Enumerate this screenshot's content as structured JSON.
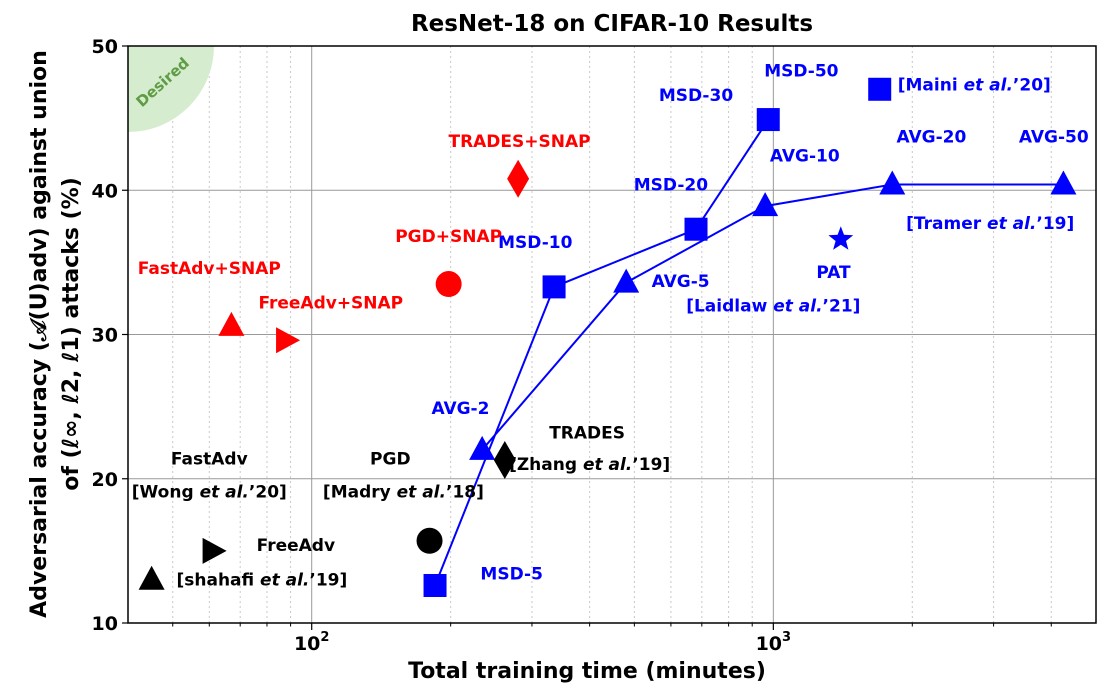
{
  "chart_data": {
    "type": "scatter",
    "title": "ResNet-18 on CIFAR-10 Results",
    "xlabel": "Total training time (minutes)",
    "ylabel_line1": "Adversarial accuracy (𝒜(U)adv) against union",
    "ylabel_line2": "of (ℓ∞, ℓ2, ℓ1) attacks (%)",
    "xscale": "log",
    "xlim": [
      40,
      5000
    ],
    "ylim": [
      10,
      50
    ],
    "grid": true,
    "x_tick_labels": [
      {
        "value": 100,
        "base": "10",
        "exp": "2"
      },
      {
        "value": 1000,
        "base": "10",
        "exp": "3"
      }
    ],
    "y_ticks": [
      10,
      20,
      30,
      40,
      50
    ],
    "desired_label": "Desired",
    "colors": {
      "blue": "#0000ff",
      "red": "#ff0000",
      "black": "#000000",
      "desired_fill": "#d6ecce",
      "desired_text": "#5e9c45"
    },
    "series_lines": [
      {
        "name": "MSD",
        "x": [
          185,
          335,
          680,
          975
        ],
        "y": [
          12.6,
          33.3,
          37.3,
          44.9
        ]
      },
      {
        "name": "AVG",
        "x": [
          234,
          480,
          960,
          1810,
          4250
        ],
        "y": [
          22.0,
          33.6,
          38.9,
          40.4,
          40.4
        ]
      }
    ],
    "points": [
      {
        "label": "MSD-5",
        "x": 185,
        "y": 12.6,
        "marker": "square",
        "color": "blue"
      },
      {
        "label": "MSD-10",
        "x": 335,
        "y": 33.3,
        "marker": "square",
        "color": "blue"
      },
      {
        "label": "MSD-20",
        "x": 680,
        "y": 37.3,
        "marker": "square",
        "color": "blue"
      },
      {
        "label": "MSD-30",
        "x": 975,
        "y": 44.9,
        "marker": "square",
        "color": "blue"
      },
      {
        "label": "MSD-50",
        "x": 1700,
        "y": 47.0,
        "marker": "square",
        "color": "blue"
      },
      {
        "label": "AVG-2",
        "x": 234,
        "y": 22.0,
        "marker": "triangle",
        "color": "blue"
      },
      {
        "label": "AVG-5",
        "x": 480,
        "y": 33.6,
        "marker": "triangle",
        "color": "blue"
      },
      {
        "label": "AVG-10",
        "x": 960,
        "y": 38.9,
        "marker": "triangle",
        "color": "blue"
      },
      {
        "label": "AVG-20",
        "x": 1810,
        "y": 40.4,
        "marker": "triangle",
        "color": "blue"
      },
      {
        "label": "AVG-50",
        "x": 4250,
        "y": 40.4,
        "marker": "triangle",
        "color": "blue"
      },
      {
        "label": "PAT",
        "x": 1400,
        "y": 36.6,
        "marker": "star",
        "color": "blue"
      },
      {
        "label": "TRADES+SNAP",
        "x": 280,
        "y": 40.8,
        "marker": "diamond",
        "color": "red"
      },
      {
        "label": "PGD+SNAP",
        "x": 198,
        "y": 33.5,
        "marker": "circle",
        "color": "red"
      },
      {
        "label": "FastAdv+SNAP",
        "x": 67,
        "y": 30.6,
        "marker": "triangle",
        "color": "red"
      },
      {
        "label": "FreeAdv+SNAP",
        "x": 88,
        "y": 29.6,
        "marker": "triangle-right",
        "color": "red"
      },
      {
        "label": "TRADES",
        "x": 262,
        "y": 21.3,
        "marker": "diamond",
        "color": "black"
      },
      {
        "label": "PGD",
        "x": 180,
        "y": 15.7,
        "marker": "circle",
        "color": "black"
      },
      {
        "label": "FastAdv",
        "x": 45,
        "y": 13.0,
        "marker": "triangle",
        "color": "black"
      },
      {
        "label": "FreeAdv",
        "x": 61,
        "y": 15.0,
        "marker": "triangle-right",
        "color": "black"
      }
    ],
    "annotations": [
      {
        "id": "msd-5",
        "color": "blue",
        "x": 232,
        "y": 13.0,
        "anchor": "start",
        "parts": [
          {
            "t": "MSD-5"
          }
        ]
      },
      {
        "id": "msd-10",
        "color": "blue",
        "x": 305,
        "y": 36.0,
        "anchor": "middle",
        "parts": [
          {
            "t": "MSD-10"
          }
        ]
      },
      {
        "id": "msd-20",
        "color": "blue",
        "x": 600,
        "y": 40.0,
        "anchor": "middle",
        "parts": [
          {
            "t": "MSD-20"
          }
        ]
      },
      {
        "id": "msd-30",
        "color": "blue",
        "x": 680,
        "y": 46.2,
        "anchor": "middle",
        "parts": [
          {
            "t": "MSD-30"
          }
        ]
      },
      {
        "id": "msd-50",
        "color": "blue",
        "x": 1150,
        "y": 47.9,
        "anchor": "middle",
        "parts": [
          {
            "t": "MSD-50"
          }
        ]
      },
      {
        "id": "maini",
        "color": "blue",
        "x": 1860,
        "y": 46.9,
        "anchor": "start",
        "parts": [
          {
            "t": "[Maini "
          },
          {
            "t": "et al.",
            "i": true
          },
          {
            "t": "’20]"
          }
        ]
      },
      {
        "id": "avg-2",
        "color": "blue",
        "x": 210,
        "y": 24.5,
        "anchor": "middle",
        "parts": [
          {
            "t": "AVG-2"
          }
        ]
      },
      {
        "id": "avg-5",
        "color": "blue",
        "x": 545,
        "y": 33.3,
        "anchor": "start",
        "parts": [
          {
            "t": "AVG-5"
          }
        ]
      },
      {
        "id": "avg-10",
        "color": "blue",
        "x": 1170,
        "y": 42.0,
        "anchor": "middle",
        "parts": [
          {
            "t": "AVG-10"
          }
        ]
      },
      {
        "id": "avg-20",
        "color": "blue",
        "x": 2200,
        "y": 43.3,
        "anchor": "middle",
        "parts": [
          {
            "t": "AVG-20"
          }
        ]
      },
      {
        "id": "avg-50",
        "color": "blue",
        "x": 4050,
        "y": 43.3,
        "anchor": "middle",
        "parts": [
          {
            "t": "AVG-50"
          }
        ]
      },
      {
        "id": "tramer",
        "color": "blue",
        "x": 2950,
        "y": 37.3,
        "anchor": "middle",
        "parts": [
          {
            "t": "[Tramer "
          },
          {
            "t": "et al.",
            "i": true
          },
          {
            "t": "’19]"
          }
        ]
      },
      {
        "id": "pat",
        "color": "blue",
        "x": 1350,
        "y": 33.9,
        "anchor": "middle",
        "parts": [
          {
            "t": "PAT"
          }
        ]
      },
      {
        "id": "laidlaw",
        "color": "blue",
        "x": 1000,
        "y": 31.6,
        "anchor": "middle",
        "parts": [
          {
            "t": "[Laidlaw "
          },
          {
            "t": "et al.",
            "i": true
          },
          {
            "t": "’21]"
          }
        ]
      },
      {
        "id": "trades-snap",
        "color": "red",
        "x": 282,
        "y": 43.0,
        "anchor": "middle",
        "parts": [
          {
            "t": "TRADES+SNAP"
          }
        ]
      },
      {
        "id": "pgd-snap",
        "color": "red",
        "x": 198,
        "y": 36.4,
        "anchor": "middle",
        "parts": [
          {
            "t": "PGD+SNAP"
          }
        ]
      },
      {
        "id": "fastadv-snap",
        "color": "red",
        "x": 60,
        "y": 34.2,
        "anchor": "middle",
        "parts": [
          {
            "t": "FastAdv+SNAP"
          }
        ]
      },
      {
        "id": "freeadv-snap",
        "color": "red",
        "x": 110,
        "y": 31.8,
        "anchor": "middle",
        "parts": [
          {
            "t": "FreeAdv+SNAP"
          }
        ]
      },
      {
        "id": "trades",
        "color": "black",
        "x": 395,
        "y": 22.8,
        "anchor": "middle",
        "parts": [
          {
            "t": "TRADES"
          }
        ]
      },
      {
        "id": "zhang",
        "color": "black",
        "x": 400,
        "y": 20.6,
        "anchor": "middle",
        "parts": [
          {
            "t": "[Zhang "
          },
          {
            "t": "et al.",
            "i": true
          },
          {
            "t": "’19]"
          }
        ]
      },
      {
        "id": "pgd",
        "color": "black",
        "x": 148,
        "y": 21.0,
        "anchor": "middle",
        "parts": [
          {
            "t": "PGD"
          }
        ]
      },
      {
        "id": "madry",
        "color": "black",
        "x": 158,
        "y": 18.7,
        "anchor": "middle",
        "parts": [
          {
            "t": "[Madry "
          },
          {
            "t": "et al.",
            "i": true
          },
          {
            "t": "’18]"
          }
        ]
      },
      {
        "id": "fastadv",
        "color": "black",
        "x": 60,
        "y": 21.0,
        "anchor": "middle",
        "parts": [
          {
            "t": "FastAdv"
          }
        ]
      },
      {
        "id": "wong",
        "color": "black",
        "x": 60,
        "y": 18.7,
        "anchor": "middle",
        "parts": [
          {
            "t": "[Wong "
          },
          {
            "t": "et al.",
            "i": true
          },
          {
            "t": "’20]"
          }
        ]
      },
      {
        "id": "freeadv",
        "color": "black",
        "x": 76,
        "y": 15.0,
        "anchor": "start",
        "parts": [
          {
            "t": "FreeAdv"
          }
        ]
      },
      {
        "id": "shahafi",
        "color": "black",
        "x": 78,
        "y": 12.6,
        "anchor": "middle",
        "parts": [
          {
            "t": "[shahafi "
          },
          {
            "t": "et al.",
            "i": true
          },
          {
            "t": "’19]"
          }
        ]
      }
    ]
  }
}
